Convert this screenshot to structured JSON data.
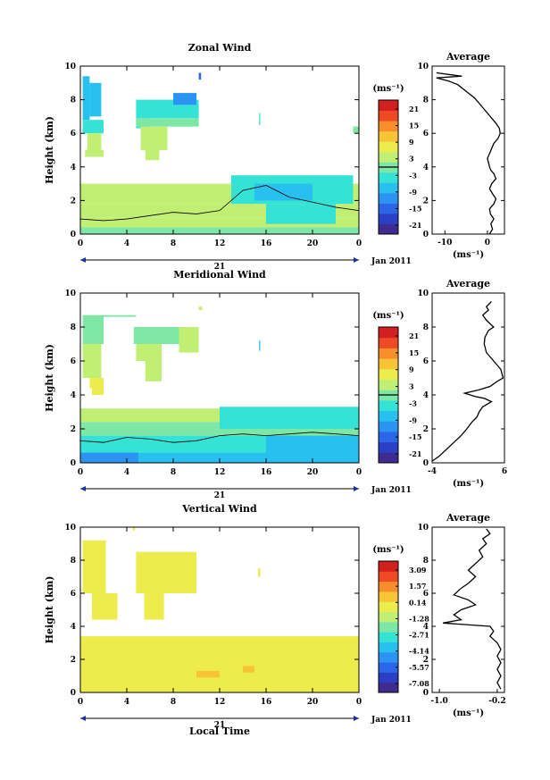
{
  "figure": {
    "xlabel": "Local Time",
    "date_day": "21",
    "date_label": "Jan 2011",
    "ylabel": "Height (km)",
    "x_ticks": [
      "0",
      "4",
      "8",
      "12",
      "16",
      "20",
      "0"
    ],
    "y_ticks": [
      "0",
      "2",
      "4",
      "6",
      "8",
      "10"
    ]
  },
  "colormap": [
    "#3f2b8f",
    "#2a3fc4",
    "#2a66e6",
    "#2b93f2",
    "#28c0ee",
    "#35e2d6",
    "#7ee7a6",
    "#c1ef74",
    "#ecec4c",
    "#f7c437",
    "#f78e2b",
    "#ee4a24",
    "#d21f1f"
  ],
  "chart_data": [
    {
      "type": "heatmap",
      "panel": "zonal",
      "title": "Zonal Wind",
      "xlabel": "Local Time",
      "ylabel": "Height (km)",
      "xlim": [
        0,
        24
      ],
      "ylim": [
        0,
        10
      ],
      "colorbar": {
        "unit": "(ms⁻¹)",
        "ticks": [
          "21",
          "15",
          "9",
          "3",
          "-3",
          "-9",
          "-15",
          "-21"
        ],
        "range": [
          -24,
          24
        ],
        "contour_level": 0
      },
      "cells": [
        [
          0.2,
          0.8,
          6.8,
          9.4,
          -9
        ],
        [
          0.8,
          1.8,
          7.0,
          9.0,
          -7
        ],
        [
          0.2,
          2.0,
          6.0,
          6.8,
          -2
        ],
        [
          0.6,
          1.8,
          5.0,
          6.0,
          2
        ],
        [
          0.4,
          2.0,
          4.6,
          5.0,
          4
        ],
        [
          4.8,
          10.2,
          6.9,
          8.0,
          -4
        ],
        [
          4.8,
          6.0,
          6.3,
          6.9,
          -3
        ],
        [
          4.8,
          10.2,
          6.4,
          6.9,
          -1
        ],
        [
          5.2,
          7.5,
          5.0,
          6.4,
          3
        ],
        [
          5.6,
          6.8,
          4.4,
          5.0,
          4
        ],
        [
          8.0,
          10.0,
          7.7,
          8.4,
          -12
        ],
        [
          10.2,
          10.4,
          9.2,
          9.6,
          -16
        ],
        [
          15.4,
          15.5,
          6.5,
          7.2,
          -2
        ],
        [
          23.5,
          24.0,
          6.0,
          6.4,
          0
        ],
        [
          0,
          24,
          2.5,
          3.0,
          2
        ],
        [
          0,
          24,
          1.8,
          2.5,
          3
        ],
        [
          0,
          24,
          1.0,
          1.8,
          2
        ],
        [
          0,
          24,
          0.4,
          1.0,
          3
        ],
        [
          0,
          24,
          0.0,
          0.4,
          1
        ],
        [
          13.0,
          23.5,
          1.8,
          3.5,
          -4
        ],
        [
          15.0,
          20.0,
          2.0,
          3.0,
          -8
        ],
        [
          16.0,
          22.0,
          0.6,
          1.8,
          -5
        ]
      ],
      "contour_x": [
        0,
        2,
        4,
        6,
        8,
        10,
        12,
        14,
        16,
        18,
        20,
        22,
        24
      ],
      "contour_y": [
        0.9,
        0.8,
        0.9,
        1.1,
        1.3,
        1.2,
        1.4,
        2.6,
        2.9,
        2.2,
        1.9,
        1.6,
        1.4
      ],
      "profile": {
        "title": "Average",
        "xlim": [
          -13,
          4
        ],
        "ylim": [
          0,
          10
        ],
        "x_ticks": [
          "-10",
          "0"
        ],
        "y_ticks": [
          "0",
          "2",
          "4",
          "6",
          "8",
          "10"
        ],
        "xlabel": "(ms⁻¹)",
        "x": [
          0.5,
          1.2,
          0.8,
          1.5,
          0.7,
          0.5,
          1.5,
          2.0,
          1.2,
          0.5,
          1.0,
          2.0,
          1.5,
          0.8,
          0.5,
          0.3,
          0.0,
          0.5,
          1.0,
          1.5,
          2.5,
          3.0,
          2.8,
          2.0,
          1.0,
          0.0,
          -1.0,
          -2.0,
          -3.0,
          -4.0,
          -5.0,
          -6.0,
          -7.0,
          -8.0,
          -9.0,
          -12.0,
          -6.0,
          -12.0
        ],
        "y": [
          0.0,
          0.3,
          0.6,
          0.9,
          1.2,
          1.5,
          1.8,
          2.1,
          2.4,
          2.7,
          3.0,
          3.3,
          3.6,
          3.8,
          4.0,
          4.2,
          4.5,
          4.8,
          5.1,
          5.4,
          5.7,
          6.0,
          6.3,
          6.6,
          6.9,
          7.2,
          7.5,
          7.8,
          8.1,
          8.3,
          8.5,
          8.7,
          8.9,
          9.0,
          9.1,
          9.3,
          9.4,
          9.6
        ]
      }
    },
    {
      "type": "heatmap",
      "panel": "meridional",
      "title": "Meridional Wind",
      "xlabel": "Local Time",
      "ylabel": "Height (km)",
      "xlim": [
        0,
        24
      ],
      "ylim": [
        0,
        10
      ],
      "colorbar": {
        "unit": "(ms⁻¹)",
        "ticks": [
          "21",
          "15",
          "9",
          "3",
          "-3",
          "-9",
          "-15",
          "-21"
        ],
        "range": [
          -24,
          24
        ],
        "contour_level": 0
      },
      "cells": [
        [
          0.2,
          2.0,
          7.0,
          8.7,
          0
        ],
        [
          0.2,
          1.8,
          5.0,
          7.0,
          2
        ],
        [
          0.8,
          2.0,
          4.4,
          5.0,
          6
        ],
        [
          1.0,
          2.0,
          4.0,
          4.4,
          8
        ],
        [
          2.0,
          4.8,
          8.6,
          8.7,
          0
        ],
        [
          4.6,
          8.5,
          7.0,
          8.0,
          0
        ],
        [
          4.8,
          7.0,
          6.0,
          7.0,
          2
        ],
        [
          5.6,
          7.0,
          4.8,
          6.0,
          3
        ],
        [
          8.5,
          10.2,
          6.5,
          8.0,
          2
        ],
        [
          10.2,
          10.5,
          9.0,
          9.2,
          3
        ],
        [
          15.4,
          15.5,
          6.6,
          7.2,
          -6
        ],
        [
          0,
          24,
          2.4,
          3.2,
          3
        ],
        [
          0,
          24,
          1.6,
          2.4,
          1
        ],
        [
          0,
          24,
          0.6,
          1.6,
          -4
        ],
        [
          0,
          24,
          0.0,
          0.6,
          -7
        ],
        [
          0,
          5,
          0.0,
          0.6,
          -11
        ],
        [
          12,
          24,
          2.0,
          3.3,
          -2
        ],
        [
          16,
          24,
          0.4,
          1.6,
          -6
        ]
      ],
      "contour_x": [
        0,
        2,
        4,
        6,
        8,
        10,
        12,
        14,
        16,
        18,
        20,
        22,
        24
      ],
      "contour_y": [
        1.3,
        1.2,
        1.5,
        1.4,
        1.2,
        1.3,
        1.6,
        1.7,
        1.6,
        1.7,
        1.8,
        1.7,
        1.6
      ],
      "profile": {
        "title": "Average",
        "xlim": [
          -4,
          6
        ],
        "ylim": [
          0,
          10
        ],
        "x_ticks": [
          "-4",
          "6"
        ],
        "y_ticks": [
          "0",
          "2",
          "4",
          "6",
          "8",
          "10"
        ],
        "xlabel": "(ms⁻¹)",
        "x": [
          -4.0,
          -3.0,
          -2.0,
          -1.0,
          0.0,
          0.8,
          1.5,
          2.2,
          2.5,
          3.0,
          4.2,
          3.2,
          2.0,
          0.5,
          2.5,
          4.0,
          5.0,
          5.8,
          5.5,
          4.5,
          3.5,
          3.2,
          3.3,
          3.8,
          4.5,
          3.5,
          3.0,
          3.8,
          3.5,
          4.2
        ],
        "y": [
          0.1,
          0.4,
          0.8,
          1.2,
          1.6,
          2.0,
          2.4,
          2.7,
          3.0,
          3.3,
          3.6,
          3.8,
          3.9,
          4.1,
          4.3,
          4.5,
          4.8,
          5.0,
          5.5,
          6.0,
          6.5,
          7.0,
          7.4,
          7.8,
          8.0,
          8.4,
          8.7,
          9.0,
          9.2,
          9.5
        ]
      }
    },
    {
      "type": "heatmap",
      "panel": "vertical",
      "title": "Vertical Wind",
      "xlabel": "Local Time",
      "ylabel": "Height (km)",
      "xlim": [
        0,
        24
      ],
      "ylim": [
        0,
        10
      ],
      "colorbar": {
        "unit": "(ms⁻¹)",
        "ticks": [
          "3.09",
          "1.57",
          "0.14",
          "-1.28",
          "-2.71",
          "-4.14",
          "-5.57",
          "-7.08"
        ],
        "range": [
          -8.5,
          4.5
        ]
      },
      "cells": [
        [
          0.2,
          2.2,
          6.0,
          9.2,
          -0.3
        ],
        [
          1.0,
          3.2,
          4.4,
          6.0,
          -0.3
        ],
        [
          4.8,
          10.0,
          6.0,
          8.5,
          -0.3
        ],
        [
          5.5,
          7.2,
          4.4,
          6.0,
          -0.4
        ],
        [
          4.5,
          4.7,
          9.8,
          10.0,
          0.2
        ],
        [
          15.3,
          15.5,
          7.0,
          7.5,
          -0.5
        ],
        [
          0,
          24,
          0.0,
          3.4,
          0.3
        ],
        [
          18,
          22,
          2.0,
          3.0,
          0.2
        ],
        [
          0,
          24,
          1.8,
          2.2,
          0.4
        ],
        [
          10,
          12,
          0.9,
          1.3,
          1.2
        ],
        [
          14,
          15,
          1.2,
          1.6,
          1.2
        ]
      ],
      "profile": {
        "title": "Average",
        "xlim": [
          -1.1,
          -0.1
        ],
        "ylim": [
          0,
          10
        ],
        "x_ticks": [
          "-1.0",
          "-0.2"
        ],
        "y_ticks": [
          "0",
          "2",
          "4",
          "6",
          "8",
          "10"
        ],
        "xlabel": "(ms⁻¹)",
        "x": [
          -0.15,
          -0.2,
          -0.15,
          -0.2,
          -0.15,
          -0.2,
          -0.15,
          -0.2,
          -0.3,
          -0.25,
          -0.3,
          -0.95,
          -0.7,
          -0.8,
          -0.7,
          -0.5,
          -0.6,
          -0.8,
          -0.7,
          -0.6,
          -0.5,
          -0.6,
          -0.5,
          -0.4,
          -0.45,
          -0.35,
          -0.4,
          -0.3,
          -0.35
        ],
        "y": [
          0.2,
          0.6,
          1.0,
          1.4,
          1.8,
          2.2,
          2.6,
          3.0,
          3.4,
          3.7,
          4.0,
          4.2,
          4.4,
          4.7,
          5.0,
          5.3,
          5.6,
          5.9,
          6.3,
          6.6,
          7.0,
          7.4,
          7.8,
          8.2,
          8.6,
          9.0,
          9.3,
          9.6,
          9.9
        ]
      }
    }
  ]
}
